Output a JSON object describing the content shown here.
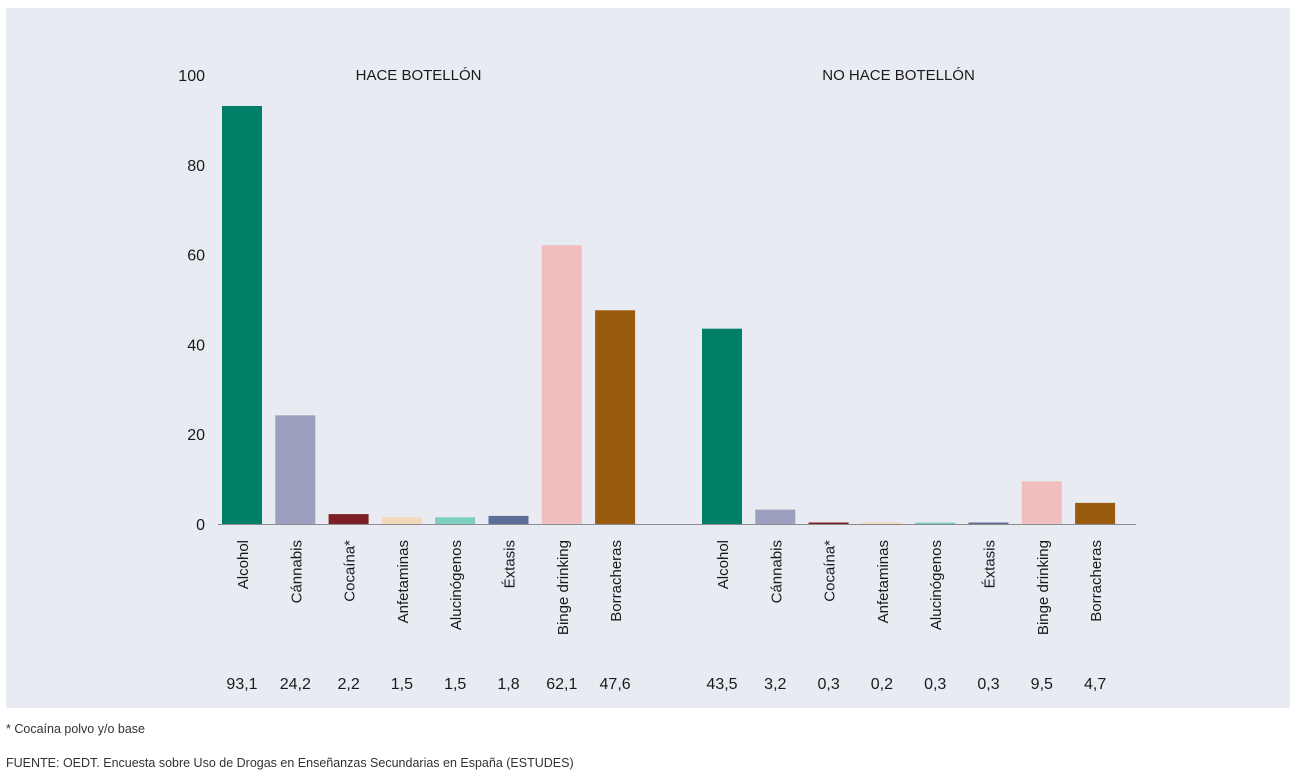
{
  "chart_data": {
    "type": "bar",
    "ylim": [
      0,
      100
    ],
    "yticks": [
      0,
      20,
      40,
      60,
      80,
      100
    ],
    "categories": [
      "Alcohol",
      "Cánnabis",
      "Cocaína*",
      "Anfetaminas",
      "Alucinógenos",
      "Éxtasis",
      "Binge drinking",
      "Borracheras"
    ],
    "colors": [
      "#007f68",
      "#9d9fbf",
      "#7d1f25",
      "#f2d9bb",
      "#7ccfc1",
      "#5e6e99",
      "#f0bebe",
      "#9b5b0d"
    ],
    "groups": [
      {
        "title": "HACE BOTELLÓN",
        "values": [
          93.1,
          24.2,
          2.2,
          1.5,
          1.5,
          1.8,
          62.1,
          47.6
        ],
        "value_labels": [
          "93,1",
          "24,2",
          "2,2",
          "1,5",
          "1,5",
          "1,8",
          "62,1",
          "47,6"
        ]
      },
      {
        "title": "NO HACE BOTELLÓN",
        "values": [
          43.5,
          3.2,
          0.3,
          0.2,
          0.3,
          0.3,
          9.5,
          4.7
        ],
        "value_labels": [
          "43,5",
          "3,2",
          "0,3",
          "0,2",
          "0,3",
          "0,3",
          "9,5",
          "4,7"
        ]
      }
    ],
    "grid": false,
    "legend": "none"
  },
  "footnotes": {
    "note": "* Cocaína polvo y/o base",
    "source": "FUENTE: OEDT. Encuesta sobre Uso de Drogas en Enseñanzas Secundarias en España (ESTUDES)"
  }
}
